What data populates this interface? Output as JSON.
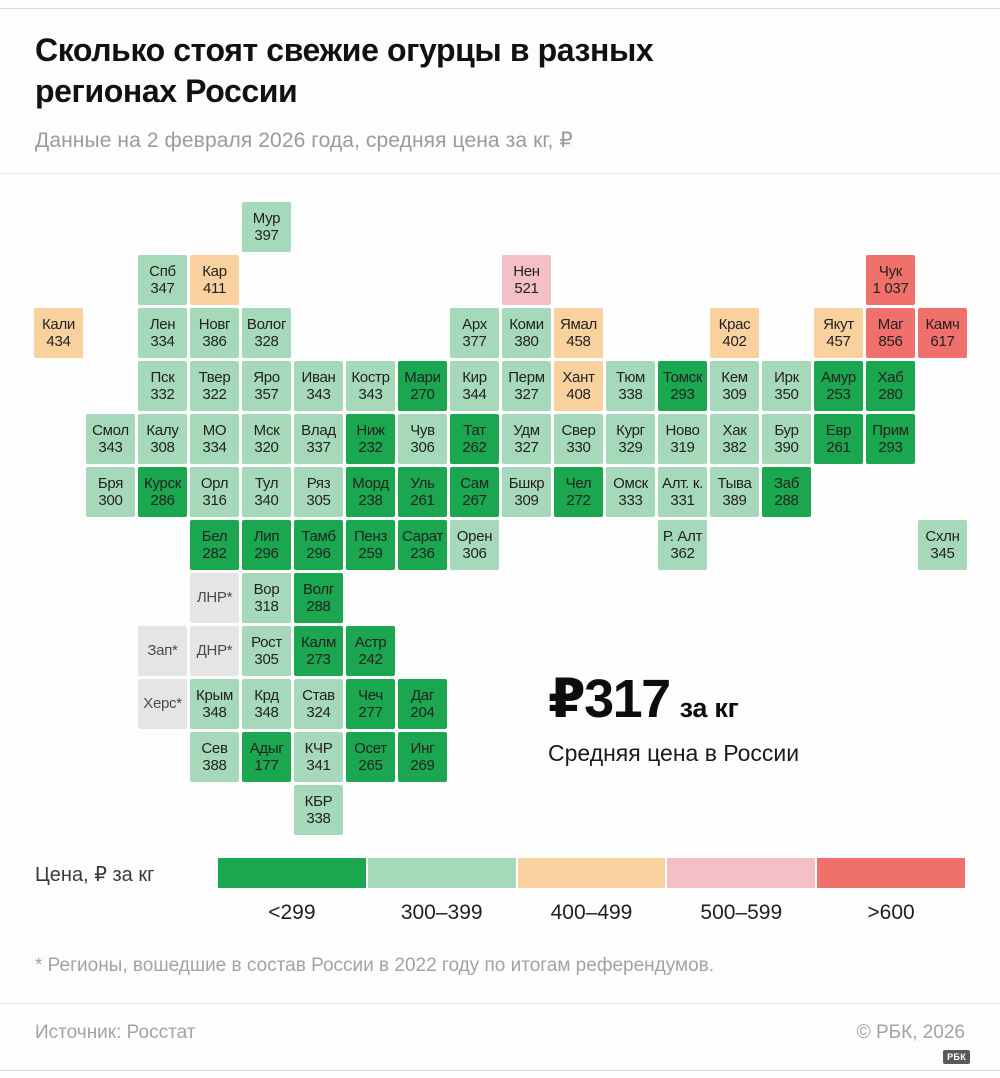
{
  "header": {
    "title_line1": "Сколько стоят свежие огурцы в разных",
    "title_line2": "регионах России",
    "subtitle": "Данные на 2 февраля 2026 года, средняя цена за кг, ₽"
  },
  "chart_data": {
    "type": "heatmap",
    "subtype": "tile-cartogram",
    "title": "Сколько стоят свежие огурцы в разных регионах России",
    "subtitle": "Данные на 2 февраля 2026 года, средняя цена за кг, ₽",
    "unit": "₽ за кг",
    "average": {
      "value_display": "₽317",
      "unit": "за кг",
      "caption": "Средняя цена в России"
    },
    "legend": {
      "label": "Цена, ₽ за кг",
      "bins": [
        {
          "key": "lt300",
          "label": "<299",
          "color": "#1aa74f"
        },
        {
          "key": "b300_399",
          "label": "300–399",
          "color": "#a6d9ba"
        },
        {
          "key": "b400_499",
          "label": "400–499",
          "color": "#f8d19e"
        },
        {
          "key": "b500_599",
          "label": "500–599",
          "color": "#f5bfc6"
        },
        {
          "key": "gt600",
          "label": ">600",
          "color": "#f0706b"
        }
      ],
      "na_color": "#e5e5e5"
    },
    "regions": [
      {
        "label": "Мур",
        "value": "397",
        "row": 0,
        "col": 4,
        "bin": "b300_399"
      },
      {
        "label": "Спб",
        "value": "347",
        "row": 1,
        "col": 2,
        "bin": "b300_399"
      },
      {
        "label": "Кар",
        "value": "411",
        "row": 1,
        "col": 3,
        "bin": "b400_499"
      },
      {
        "label": "Нен",
        "value": "521",
        "row": 1,
        "col": 9,
        "bin": "b500_599"
      },
      {
        "label": "Чук",
        "value": "1 037",
        "row": 1,
        "col": 16,
        "bin": "gt600"
      },
      {
        "label": "Кали",
        "value": "434",
        "row": 2,
        "col": 0,
        "bin": "b400_499"
      },
      {
        "label": "Лен",
        "value": "334",
        "row": 2,
        "col": 2,
        "bin": "b300_399"
      },
      {
        "label": "Новг",
        "value": "386",
        "row": 2,
        "col": 3,
        "bin": "b300_399"
      },
      {
        "label": "Волог",
        "value": "328",
        "row": 2,
        "col": 4,
        "bin": "b300_399"
      },
      {
        "label": "Арх",
        "value": "377",
        "row": 2,
        "col": 8,
        "bin": "b300_399"
      },
      {
        "label": "Коми",
        "value": "380",
        "row": 2,
        "col": 9,
        "bin": "b300_399"
      },
      {
        "label": "Ямал",
        "value": "458",
        "row": 2,
        "col": 10,
        "bin": "b400_499"
      },
      {
        "label": "Крас",
        "value": "402",
        "row": 2,
        "col": 13,
        "bin": "b400_499"
      },
      {
        "label": "Якут",
        "value": "457",
        "row": 2,
        "col": 15,
        "bin": "b400_499"
      },
      {
        "label": "Маг",
        "value": "856",
        "row": 2,
        "col": 16,
        "bin": "gt600"
      },
      {
        "label": "Камч",
        "value": "617",
        "row": 2,
        "col": 17,
        "bin": "gt600"
      },
      {
        "label": "Пск",
        "value": "332",
        "row": 3,
        "col": 2,
        "bin": "b300_399"
      },
      {
        "label": "Твер",
        "value": "322",
        "row": 3,
        "col": 3,
        "bin": "b300_399"
      },
      {
        "label": "Яро",
        "value": "357",
        "row": 3,
        "col": 4,
        "bin": "b300_399"
      },
      {
        "label": "Иван",
        "value": "343",
        "row": 3,
        "col": 5,
        "bin": "b300_399"
      },
      {
        "label": "Костр",
        "value": "343",
        "row": 3,
        "col": 6,
        "bin": "b300_399"
      },
      {
        "label": "Мари",
        "value": "270",
        "row": 3,
        "col": 7,
        "bin": "lt300"
      },
      {
        "label": "Кир",
        "value": "344",
        "row": 3,
        "col": 8,
        "bin": "b300_399"
      },
      {
        "label": "Перм",
        "value": "327",
        "row": 3,
        "col": 9,
        "bin": "b300_399"
      },
      {
        "label": "Хант",
        "value": "408",
        "row": 3,
        "col": 10,
        "bin": "b400_499"
      },
      {
        "label": "Тюм",
        "value": "338",
        "row": 3,
        "col": 11,
        "bin": "b300_399"
      },
      {
        "label": "Томск",
        "value": "293",
        "row": 3,
        "col": 12,
        "bin": "lt300"
      },
      {
        "label": "Кем",
        "value": "309",
        "row": 3,
        "col": 13,
        "bin": "b300_399"
      },
      {
        "label": "Ирк",
        "value": "350",
        "row": 3,
        "col": 14,
        "bin": "b300_399"
      },
      {
        "label": "Амур",
        "value": "253",
        "row": 3,
        "col": 15,
        "bin": "lt300"
      },
      {
        "label": "Хаб",
        "value": "280",
        "row": 3,
        "col": 16,
        "bin": "lt300"
      },
      {
        "label": "Смол",
        "value": "343",
        "row": 4,
        "col": 1,
        "bin": "b300_399"
      },
      {
        "label": "Калу",
        "value": "308",
        "row": 4,
        "col": 2,
        "bin": "b300_399"
      },
      {
        "label": "МО",
        "value": "334",
        "row": 4,
        "col": 3,
        "bin": "b300_399"
      },
      {
        "label": "Мск",
        "value": "320",
        "row": 4,
        "col": 4,
        "bin": "b300_399"
      },
      {
        "label": "Влад",
        "value": "337",
        "row": 4,
        "col": 5,
        "bin": "b300_399"
      },
      {
        "label": "Ниж",
        "value": "232",
        "row": 4,
        "col": 6,
        "bin": "lt300"
      },
      {
        "label": "Чув",
        "value": "306",
        "row": 4,
        "col": 7,
        "bin": "b300_399"
      },
      {
        "label": "Тат",
        "value": "262",
        "row": 4,
        "col": 8,
        "bin": "lt300"
      },
      {
        "label": "Удм",
        "value": "327",
        "row": 4,
        "col": 9,
        "bin": "b300_399"
      },
      {
        "label": "Свер",
        "value": "330",
        "row": 4,
        "col": 10,
        "bin": "b300_399"
      },
      {
        "label": "Кург",
        "value": "329",
        "row": 4,
        "col": 11,
        "bin": "b300_399"
      },
      {
        "label": "Ново",
        "value": "319",
        "row": 4,
        "col": 12,
        "bin": "b300_399"
      },
      {
        "label": "Хак",
        "value": "382",
        "row": 4,
        "col": 13,
        "bin": "b300_399"
      },
      {
        "label": "Бур",
        "value": "390",
        "row": 4,
        "col": 14,
        "bin": "b300_399"
      },
      {
        "label": "Евр",
        "value": "261",
        "row": 4,
        "col": 15,
        "bin": "lt300"
      },
      {
        "label": "Прим",
        "value": "293",
        "row": 4,
        "col": 16,
        "bin": "lt300"
      },
      {
        "label": "Бря",
        "value": "300",
        "row": 5,
        "col": 1,
        "bin": "b300_399"
      },
      {
        "label": "Курск",
        "value": "286",
        "row": 5,
        "col": 2,
        "bin": "lt300"
      },
      {
        "label": "Орл",
        "value": "316",
        "row": 5,
        "col": 3,
        "bin": "b300_399"
      },
      {
        "label": "Тул",
        "value": "340",
        "row": 5,
        "col": 4,
        "bin": "b300_399"
      },
      {
        "label": "Ряз",
        "value": "305",
        "row": 5,
        "col": 5,
        "bin": "b300_399"
      },
      {
        "label": "Морд",
        "value": "238",
        "row": 5,
        "col": 6,
        "bin": "lt300"
      },
      {
        "label": "Уль",
        "value": "261",
        "row": 5,
        "col": 7,
        "bin": "lt300"
      },
      {
        "label": "Сам",
        "value": "267",
        "row": 5,
        "col": 8,
        "bin": "lt300"
      },
      {
        "label": "Бшкр",
        "value": "309",
        "row": 5,
        "col": 9,
        "bin": "b300_399"
      },
      {
        "label": "Чел",
        "value": "272",
        "row": 5,
        "col": 10,
        "bin": "lt300"
      },
      {
        "label": "Омск",
        "value": "333",
        "row": 5,
        "col": 11,
        "bin": "b300_399"
      },
      {
        "label": "Алт. к.",
        "value": "331",
        "row": 5,
        "col": 12,
        "bin": "b300_399"
      },
      {
        "label": "Тыва",
        "value": "389",
        "row": 5,
        "col": 13,
        "bin": "b300_399"
      },
      {
        "label": "Заб",
        "value": "288",
        "row": 5,
        "col": 14,
        "bin": "lt300"
      },
      {
        "label": "Бел",
        "value": "282",
        "row": 6,
        "col": 3,
        "bin": "lt300"
      },
      {
        "label": "Лип",
        "value": "296",
        "row": 6,
        "col": 4,
        "bin": "lt300"
      },
      {
        "label": "Тамб",
        "value": "296",
        "row": 6,
        "col": 5,
        "bin": "lt300"
      },
      {
        "label": "Пенз",
        "value": "259",
        "row": 6,
        "col": 6,
        "bin": "lt300"
      },
      {
        "label": "Сарат",
        "value": "236",
        "row": 6,
        "col": 7,
        "bin": "lt300"
      },
      {
        "label": "Орен",
        "value": "306",
        "row": 6,
        "col": 8,
        "bin": "b300_399"
      },
      {
        "label": "Р. Алт",
        "value": "362",
        "row": 6,
        "col": 12,
        "bin": "b300_399"
      },
      {
        "label": "Схлн",
        "value": "345",
        "row": 6,
        "col": 17,
        "bin": "b300_399"
      },
      {
        "label": "ЛНР*",
        "value": "",
        "row": 7,
        "col": 3,
        "bin": "na"
      },
      {
        "label": "Вор",
        "value": "318",
        "row": 7,
        "col": 4,
        "bin": "b300_399"
      },
      {
        "label": "Волг",
        "value": "288",
        "row": 7,
        "col": 5,
        "bin": "lt300"
      },
      {
        "label": "Зап*",
        "value": "",
        "row": 8,
        "col": 2,
        "bin": "na"
      },
      {
        "label": "ДНР*",
        "value": "",
        "row": 8,
        "col": 3,
        "bin": "na"
      },
      {
        "label": "Рост",
        "value": "305",
        "row": 8,
        "col": 4,
        "bin": "b300_399"
      },
      {
        "label": "Калм",
        "value": "273",
        "row": 8,
        "col": 5,
        "bin": "lt300"
      },
      {
        "label": "Астр",
        "value": "242",
        "row": 8,
        "col": 6,
        "bin": "lt300"
      },
      {
        "label": "Херс*",
        "value": "",
        "row": 9,
        "col": 2,
        "bin": "na"
      },
      {
        "label": "Крым",
        "value": "348",
        "row": 9,
        "col": 3,
        "bin": "b300_399"
      },
      {
        "label": "Крд",
        "value": "348",
        "row": 9,
        "col": 4,
        "bin": "b300_399"
      },
      {
        "label": "Став",
        "value": "324",
        "row": 9,
        "col": 5,
        "bin": "b300_399"
      },
      {
        "label": "Чеч",
        "value": "277",
        "row": 9,
        "col": 6,
        "bin": "lt300"
      },
      {
        "label": "Даг",
        "value": "204",
        "row": 9,
        "col": 7,
        "bin": "lt300"
      },
      {
        "label": "Сев",
        "value": "388",
        "row": 10,
        "col": 3,
        "bin": "b300_399"
      },
      {
        "label": "Адыг",
        "value": "177",
        "row": 10,
        "col": 4,
        "bin": "lt300"
      },
      {
        "label": "КЧР",
        "value": "341",
        "row": 10,
        "col": 5,
        "bin": "b300_399"
      },
      {
        "label": "Осет",
        "value": "265",
        "row": 10,
        "col": 6,
        "bin": "lt300"
      },
      {
        "label": "Инг",
        "value": "269",
        "row": 10,
        "col": 7,
        "bin": "lt300"
      },
      {
        "label": "КБР",
        "value": "338",
        "row": 11,
        "col": 5,
        "bin": "b300_399"
      }
    ]
  },
  "footnote": "* Регионы, вошедшие в состав России в 2022 году по итогам референдумов.",
  "footer": {
    "source": "Источник: Росстат",
    "copyright": "© РБК, 2026",
    "logo": "РБК"
  }
}
